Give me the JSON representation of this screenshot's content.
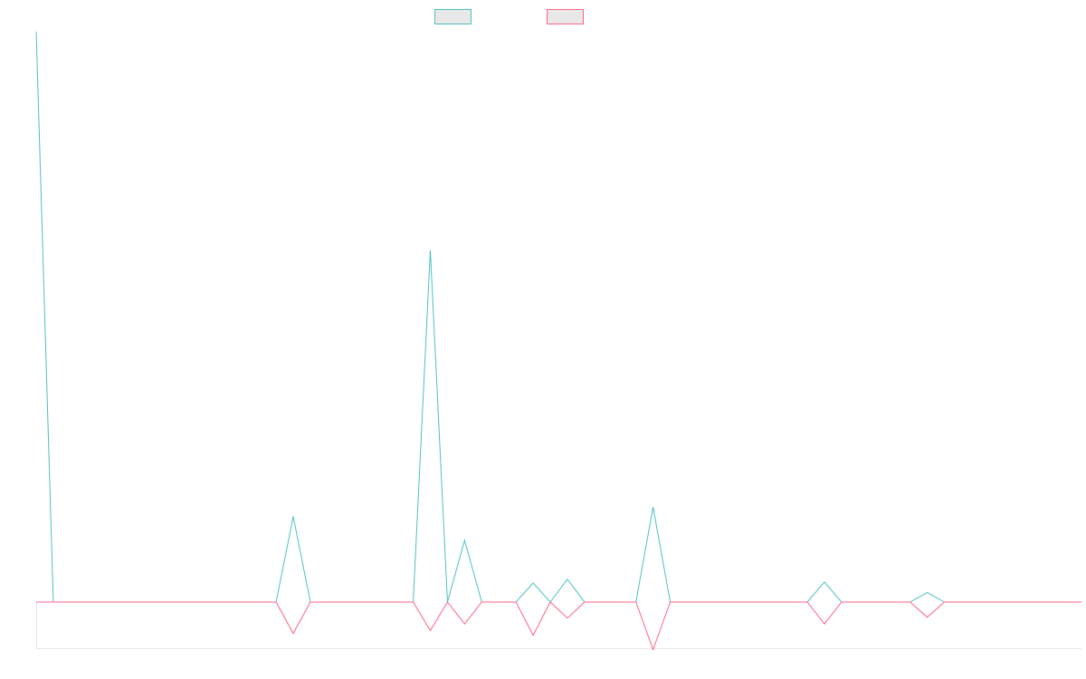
{
  "chart_data": {
    "type": "line",
    "title": "",
    "xlabel": "",
    "ylabel": "",
    "legend": {
      "placement": "top-center"
    },
    "grid": false,
    "x": [
      0,
      1,
      2,
      14,
      15,
      16,
      21,
      22,
      23,
      24,
      25,
      26,
      27,
      28,
      29,
      30,
      31,
      32,
      35,
      36,
      37,
      38,
      45,
      46,
      47,
      48,
      51,
      52,
      53,
      58,
      59,
      60,
      61
    ],
    "ylim": [
      -5,
      60
    ],
    "series": [
      {
        "color": "#4bc0c0",
        "fill": "#e8e8e8",
        "values": [
          60,
          0,
          0,
          0,
          9,
          0,
          0,
          0,
          37,
          0,
          6.5,
          0,
          0,
          0,
          2,
          0,
          2.4,
          0,
          0,
          10,
          0,
          0,
          0,
          2.1,
          0,
          0,
          0,
          1,
          0,
          0,
          0,
          0,
          0
        ]
      },
      {
        "color": "#ff6384",
        "fill": "#e8e8e8",
        "values": [
          0,
          0,
          0,
          0,
          -3.3,
          0,
          0,
          0,
          -3,
          0,
          -2.3,
          0,
          0,
          0,
          -3.5,
          0,
          -1.7,
          0,
          0,
          -5,
          0,
          0,
          0,
          -2.3,
          0,
          0,
          0,
          -1.6,
          0,
          0,
          0,
          0,
          0
        ]
      }
    ]
  }
}
